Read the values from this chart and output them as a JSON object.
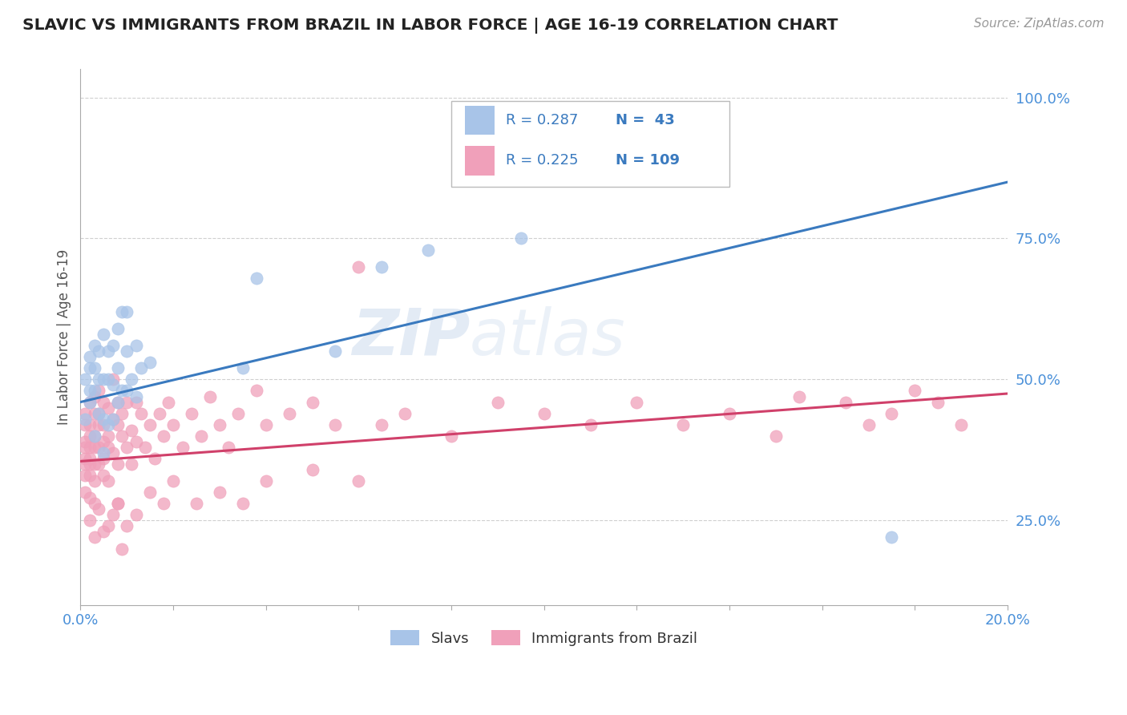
{
  "title": "SLAVIC VS IMMIGRANTS FROM BRAZIL IN LABOR FORCE | AGE 16-19 CORRELATION CHART",
  "source_text": "Source: ZipAtlas.com",
  "ylabel": "In Labor Force | Age 16-19",
  "xlim": [
    0.0,
    0.2
  ],
  "ylim": [
    0.1,
    1.05
  ],
  "xtick_positions": [
    0.0,
    0.02,
    0.04,
    0.06,
    0.08,
    0.1,
    0.12,
    0.14,
    0.16,
    0.18,
    0.2
  ],
  "xtick_labels": [
    "0.0%",
    "",
    "",
    "",
    "",
    "",
    "",
    "",
    "",
    "",
    "20.0%"
  ],
  "ytick_vals_right": [
    0.25,
    0.5,
    0.75,
    1.0
  ],
  "ytick_labels_right": [
    "25.0%",
    "50.0%",
    "75.0%",
    "100.0%"
  ],
  "slavs_R": 0.287,
  "slavs_N": 43,
  "brazil_R": 0.225,
  "brazil_N": 109,
  "slavs_color": "#a8c4e8",
  "slavs_line_color": "#3a7abf",
  "brazil_color": "#f0a0ba",
  "brazil_line_color": "#d0406a",
  "background_color": "#ffffff",
  "grid_color": "#d0d0d0",
  "watermark_color": "#c8d8ec",
  "slavs_x": [
    0.001,
    0.001,
    0.002,
    0.002,
    0.002,
    0.002,
    0.003,
    0.003,
    0.003,
    0.003,
    0.004,
    0.004,
    0.004,
    0.005,
    0.005,
    0.005,
    0.005,
    0.006,
    0.006,
    0.006,
    0.007,
    0.007,
    0.007,
    0.008,
    0.008,
    0.008,
    0.009,
    0.009,
    0.01,
    0.01,
    0.01,
    0.011,
    0.012,
    0.012,
    0.013,
    0.015,
    0.035,
    0.038,
    0.055,
    0.065,
    0.075,
    0.095,
    0.175
  ],
  "slavs_y": [
    0.43,
    0.5,
    0.48,
    0.52,
    0.46,
    0.54,
    0.4,
    0.48,
    0.52,
    0.56,
    0.44,
    0.5,
    0.55,
    0.37,
    0.43,
    0.5,
    0.58,
    0.42,
    0.5,
    0.55,
    0.43,
    0.49,
    0.56,
    0.46,
    0.52,
    0.59,
    0.48,
    0.62,
    0.48,
    0.55,
    0.62,
    0.5,
    0.47,
    0.56,
    0.52,
    0.53,
    0.52,
    0.68,
    0.55,
    0.7,
    0.73,
    0.75,
    0.22
  ],
  "brazil_x": [
    0.001,
    0.001,
    0.001,
    0.001,
    0.001,
    0.001,
    0.001,
    0.001,
    0.002,
    0.002,
    0.002,
    0.002,
    0.002,
    0.002,
    0.002,
    0.002,
    0.003,
    0.003,
    0.003,
    0.003,
    0.003,
    0.003,
    0.003,
    0.004,
    0.004,
    0.004,
    0.004,
    0.004,
    0.005,
    0.005,
    0.005,
    0.005,
    0.005,
    0.006,
    0.006,
    0.006,
    0.006,
    0.007,
    0.007,
    0.007,
    0.008,
    0.008,
    0.008,
    0.008,
    0.009,
    0.009,
    0.01,
    0.01,
    0.011,
    0.011,
    0.012,
    0.012,
    0.013,
    0.014,
    0.015,
    0.016,
    0.017,
    0.018,
    0.019,
    0.02,
    0.022,
    0.024,
    0.026,
    0.028,
    0.03,
    0.032,
    0.034,
    0.038,
    0.04,
    0.045,
    0.05,
    0.055,
    0.06,
    0.065,
    0.07,
    0.08,
    0.09,
    0.1,
    0.11,
    0.12,
    0.13,
    0.14,
    0.15,
    0.155,
    0.165,
    0.17,
    0.175,
    0.18,
    0.185,
    0.19,
    0.002,
    0.003,
    0.004,
    0.005,
    0.006,
    0.007,
    0.008,
    0.009,
    0.01,
    0.012,
    0.015,
    0.018,
    0.02,
    0.025,
    0.03,
    0.035,
    0.04,
    0.05,
    0.06
  ],
  "brazil_y": [
    0.36,
    0.39,
    0.33,
    0.42,
    0.38,
    0.3,
    0.44,
    0.35,
    0.38,
    0.42,
    0.35,
    0.29,
    0.46,
    0.4,
    0.33,
    0.36,
    0.38,
    0.44,
    0.32,
    0.4,
    0.47,
    0.35,
    0.28,
    0.42,
    0.38,
    0.35,
    0.48,
    0.44,
    0.36,
    0.42,
    0.46,
    0.33,
    0.39,
    0.38,
    0.45,
    0.32,
    0.4,
    0.37,
    0.43,
    0.5,
    0.35,
    0.42,
    0.46,
    0.28,
    0.4,
    0.44,
    0.38,
    0.46,
    0.35,
    0.41,
    0.39,
    0.46,
    0.44,
    0.38,
    0.42,
    0.36,
    0.44,
    0.4,
    0.46,
    0.42,
    0.38,
    0.44,
    0.4,
    0.47,
    0.42,
    0.38,
    0.44,
    0.48,
    0.42,
    0.44,
    0.46,
    0.42,
    0.7,
    0.42,
    0.44,
    0.4,
    0.46,
    0.44,
    0.42,
    0.46,
    0.42,
    0.44,
    0.4,
    0.47,
    0.46,
    0.42,
    0.44,
    0.48,
    0.46,
    0.42,
    0.25,
    0.22,
    0.27,
    0.23,
    0.24,
    0.26,
    0.28,
    0.2,
    0.24,
    0.26,
    0.3,
    0.28,
    0.32,
    0.28,
    0.3,
    0.28,
    0.32,
    0.34,
    0.32
  ],
  "slavs_trendline": [
    0.46,
    0.85
  ],
  "brazil_trendline": [
    0.355,
    0.475
  ]
}
